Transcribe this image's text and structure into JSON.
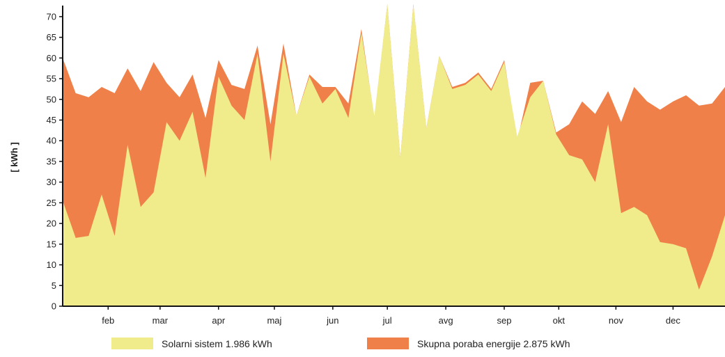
{
  "chart_data": {
    "type": "area",
    "ylabel": "[ kWh ]",
    "xlabel": "",
    "ylim": [
      0,
      72
    ],
    "yticks": [
      0,
      5,
      10,
      15,
      20,
      25,
      30,
      35,
      40,
      45,
      50,
      55,
      60,
      65,
      70
    ],
    "month_labels": [
      "feb",
      "mar",
      "apr",
      "maj",
      "jun",
      "jul",
      "avg",
      "sep",
      "okt",
      "nov",
      "dec"
    ],
    "x_range": [
      0,
      52
    ],
    "grid": false,
    "legend_position": "bottom",
    "series": [
      {
        "name": "Skupna poraba energije 2.875 kWh",
        "color": "#f0804a",
        "values": [
          60,
          51.5,
          50.5,
          53,
          51.5,
          57.5,
          52,
          59,
          54,
          50.5,
          56,
          45.5,
          59.5,
          53.5,
          52.5,
          63,
          44,
          63.5,
          46,
          56,
          53,
          53,
          49,
          67,
          45.5,
          73,
          36,
          73,
          43,
          60.5,
          53,
          54,
          56.5,
          52.5,
          59.5,
          40,
          54,
          54.5,
          42,
          44,
          49.5,
          46.5,
          52,
          44.5,
          53,
          49.5,
          47.5,
          49.5,
          51,
          48.5,
          49,
          53
        ]
      },
      {
        "name": "Solarni sistem 1.986 kWh",
        "color": "#f0ec8c",
        "values": [
          25.5,
          16.5,
          17,
          27,
          17,
          39,
          24,
          27.5,
          44.5,
          40,
          47,
          31,
          55.5,
          48.5,
          45,
          61,
          35,
          61,
          46,
          55.5,
          49,
          52.5,
          45.5,
          66,
          46,
          73,
          36,
          73,
          43,
          60.5,
          52.5,
          53.5,
          56,
          52,
          59,
          41,
          50.5,
          54.5,
          41.5,
          36.5,
          35.5,
          30,
          44,
          22.5,
          24,
          22,
          15.5,
          15,
          14,
          4,
          12,
          22
        ]
      }
    ]
  }
}
